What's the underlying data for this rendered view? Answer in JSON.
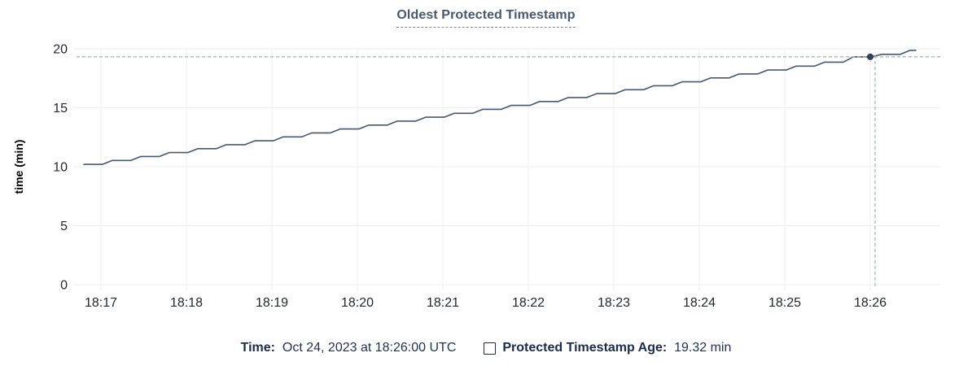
{
  "title": "Oldest Protected Timestamp",
  "chart_data": {
    "type": "line",
    "title": "Oldest Protected Timestamp",
    "xlabel": "",
    "ylabel": "time (min)",
    "ylim": [
      0,
      20
    ],
    "y_ticks": [
      0,
      5,
      10,
      15,
      20
    ],
    "x_ticks": [
      "18:17",
      "18:18",
      "18:19",
      "18:20",
      "18:21",
      "18:22",
      "18:23",
      "18:24",
      "18:25",
      "18:26"
    ],
    "grid": true,
    "legend_position": "bottom",
    "series": [
      {
        "name": "Protected Timestamp Age",
        "unit": "min",
        "points": [
          [
            -12,
            10.2
          ],
          [
            1,
            10.2
          ],
          [
            8,
            10.53
          ],
          [
            21,
            10.53
          ],
          [
            28,
            10.87
          ],
          [
            41,
            10.87
          ],
          [
            48,
            11.2
          ],
          [
            61,
            11.2
          ],
          [
            68,
            11.53
          ],
          [
            81,
            11.53
          ],
          [
            88,
            11.87
          ],
          [
            101,
            11.87
          ],
          [
            108,
            12.2
          ],
          [
            121,
            12.2
          ],
          [
            128,
            12.53
          ],
          [
            141,
            12.53
          ],
          [
            148,
            12.87
          ],
          [
            161,
            12.87
          ],
          [
            168,
            13.2
          ],
          [
            181,
            13.2
          ],
          [
            188,
            13.53
          ],
          [
            201,
            13.53
          ],
          [
            208,
            13.87
          ],
          [
            221,
            13.87
          ],
          [
            228,
            14.2
          ],
          [
            241,
            14.2
          ],
          [
            248,
            14.53
          ],
          [
            261,
            14.53
          ],
          [
            268,
            14.87
          ],
          [
            281,
            14.87
          ],
          [
            288,
            15.2
          ],
          [
            301,
            15.2
          ],
          [
            308,
            15.53
          ],
          [
            321,
            15.53
          ],
          [
            328,
            15.87
          ],
          [
            341,
            15.87
          ],
          [
            348,
            16.2
          ],
          [
            361,
            16.2
          ],
          [
            368,
            16.53
          ],
          [
            381,
            16.53
          ],
          [
            388,
            16.87
          ],
          [
            401,
            16.87
          ],
          [
            408,
            17.2
          ],
          [
            421,
            17.2
          ],
          [
            428,
            17.53
          ],
          [
            441,
            17.53
          ],
          [
            448,
            17.87
          ],
          [
            461,
            17.87
          ],
          [
            468,
            18.2
          ],
          [
            481,
            18.2
          ],
          [
            488,
            18.53
          ],
          [
            501,
            18.53
          ],
          [
            508,
            18.87
          ],
          [
            521,
            18.87
          ],
          [
            528,
            19.32
          ],
          [
            541,
            19.32
          ],
          [
            548,
            19.53
          ],
          [
            561,
            19.53
          ],
          [
            568,
            19.87
          ],
          [
            572,
            19.87
          ]
        ]
      }
    ],
    "hover": {
      "x_seconds": 540,
      "x_tick": "18:26",
      "value": 19.32,
      "crosshair": true
    }
  },
  "footer": {
    "time_label": "Time:",
    "time_value": "Oct 24, 2023 at 18:26:00 UTC",
    "series_label": "Protected Timestamp Age:",
    "series_value": "19.32 min"
  },
  "colors": {
    "title": "#475872",
    "line": "#475872",
    "hover_dot": "#33405c",
    "grid": "#efefef",
    "crosshair": "#9db1c5",
    "tick_text": "#24272e",
    "axis_label": "#000000",
    "footer_text": "#1c2c4f"
  }
}
